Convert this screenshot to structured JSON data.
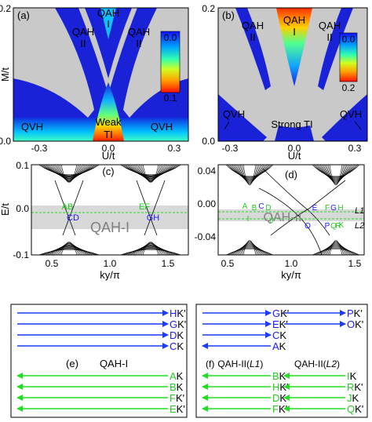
{
  "figure": {
    "panel_a": {
      "tag": "(a)",
      "ylabel": "M/t",
      "xlabel": "U/t",
      "y_ticks": [
        "0.2",
        "0.0"
      ],
      "x_ticks": [
        "-0.3",
        "0.0",
        "0.3"
      ],
      "regions": {
        "qah_top": "QAH",
        "qah_top_roman": "I",
        "qah_left": "QAH",
        "qah_left_roman": "II",
        "qah_right": "QAH",
        "qah_right_roman": "II",
        "qvh_left": "QVH",
        "qvh_right": "QVH",
        "weak": "Weak",
        "ti": "TI"
      },
      "colorbar": {
        "top": "0.0",
        "bottom": "0.1"
      }
    },
    "panel_b": {
      "tag": "(b)",
      "xlabel": "U/t",
      "y_ticks": [
        "0.2",
        "0.0"
      ],
      "x_ticks": [
        "-0.3",
        "0.0",
        "0.3"
      ],
      "regions": {
        "qah_top": "QAH",
        "qah_top_roman": "I",
        "qah_left": "QAH",
        "qah_left_roman": "II",
        "qah_right": "QAH",
        "qah_right_roman": "II",
        "qvh_left": "QVH",
        "qvh_right": "QVH",
        "strong": "Strong TI"
      },
      "colorbar": {
        "top": "0.0",
        "bottom": "0.2"
      }
    },
    "panel_c": {
      "tag": "(c)",
      "ylabel": "E/t",
      "xlabel": "ky/π",
      "y_ticks": [
        "0.1",
        "0.0",
        "-0.1"
      ],
      "x_ticks": [
        "0.5",
        "1.0",
        "1.5"
      ],
      "gap_label": "QAH-I",
      "points": {
        "left_top": "AB",
        "left_bottom": "CD",
        "right_top": "EF",
        "right_bottom": "GH"
      }
    },
    "panel_d": {
      "tag": "(d)",
      "y_ticks": [
        "0.04",
        "0.00",
        "-0.04"
      ],
      "x_ticks": [
        "0.5",
        "1.0",
        "1.5"
      ],
      "xlabel": "ky/π",
      "gap_label": "QAH-II",
      "points": {
        "A": "A",
        "B": "B",
        "C": "C",
        "D": "D",
        "E": "E",
        "F": "F",
        "G": "G",
        "H": "H",
        "I": "I",
        "J": "J",
        "K": "K",
        "O": "O",
        "P": "P",
        "Q": "Q",
        "R": "R"
      },
      "lines": {
        "l1": "L1",
        "l2": "L2"
      }
    },
    "panel_e": {
      "title_tag": "(e)",
      "title": "QAH-I",
      "blue_arrows": [
        {
          "name": "H",
          "valley": "K'"
        },
        {
          "name": "G",
          "valley": "K'"
        },
        {
          "name": "D",
          "valley": "K"
        },
        {
          "name": "C",
          "valley": "K"
        }
      ],
      "green_arrows": [
        {
          "name": "A",
          "valley": "K"
        },
        {
          "name": "B",
          "valley": "K"
        },
        {
          "name": "F",
          "valley": "K'"
        },
        {
          "name": "E",
          "valley": "K'"
        }
      ]
    },
    "panel_f": {
      "title_tag": "(f)",
      "title_l1": "QAH-II(",
      "l1_label": "L1",
      "title_l2": "QAH-II(",
      "l2_label": "L2",
      "close_paren": ")",
      "l1_blue": [
        {
          "name": "G",
          "valley": "K'",
          "direction": "right"
        },
        {
          "name": "E",
          "valley": "K'",
          "direction": "right"
        },
        {
          "name": "C",
          "valley": "K",
          "direction": "right"
        },
        {
          "name": "A",
          "valley": "K",
          "direction": "left"
        }
      ],
      "l2_blue": [
        {
          "name": "P",
          "valley": "K'",
          "direction": "right"
        },
        {
          "name": "O",
          "valley": "K'",
          "direction": "right"
        }
      ],
      "l1_green": [
        {
          "name": "B",
          "valley": "K"
        },
        {
          "name": "H",
          "valley": "K'"
        },
        {
          "name": "D",
          "valley": "K"
        },
        {
          "name": "F",
          "valley": "K'"
        }
      ],
      "l2_green": [
        {
          "name": "I",
          "valley": "K"
        },
        {
          "name": "R",
          "valley": "K'"
        },
        {
          "name": "J",
          "valley": "K"
        },
        {
          "name": "Q",
          "valley": "K'"
        }
      ]
    }
  },
  "colors": {
    "blue_arrow": "#1a3cff",
    "green_arrow": "#22dd22",
    "gray_region": "#c9c9c9",
    "deep_blue": "#1a22d8",
    "point_blue": "#1a1aff",
    "point_green": "#22cc22"
  }
}
